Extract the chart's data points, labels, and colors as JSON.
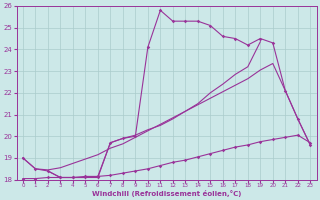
{
  "xlabel": "Windchill (Refroidissement éolien,°C)",
  "bg_color": "#cce8e8",
  "grid_color": "#aacccc",
  "line_color": "#993399",
  "xlim": [
    -0.5,
    23.5
  ],
  "ylim": [
    18,
    26
  ],
  "xticks": [
    0,
    1,
    2,
    3,
    4,
    5,
    6,
    7,
    8,
    9,
    10,
    11,
    12,
    13,
    14,
    15,
    16,
    17,
    18,
    19,
    20,
    21,
    22,
    23
  ],
  "yticks": [
    18,
    19,
    20,
    21,
    22,
    23,
    24,
    25,
    26
  ],
  "line1_x": [
    0,
    1,
    2,
    3,
    4,
    5,
    6,
    7,
    8,
    9,
    10,
    11,
    12,
    13,
    14,
    15,
    16,
    17,
    18,
    19,
    20,
    21,
    22,
    23
  ],
  "line1_y": [
    19.0,
    18.5,
    18.4,
    18.1,
    18.1,
    18.1,
    18.1,
    19.7,
    19.9,
    20.0,
    24.1,
    25.8,
    25.3,
    25.3,
    25.3,
    25.1,
    24.6,
    24.5,
    24.2,
    24.5,
    24.3,
    22.1,
    20.8,
    19.6
  ],
  "line2_x": [
    0,
    1,
    2,
    3,
    4,
    5,
    6,
    7,
    8,
    9,
    10,
    11,
    12,
    13,
    14,
    15,
    16,
    17,
    18,
    19,
    20,
    21,
    22,
    23
  ],
  "line2_y": [
    18.05,
    18.05,
    18.1,
    18.1,
    18.1,
    18.15,
    18.15,
    18.2,
    18.3,
    18.4,
    18.5,
    18.65,
    18.8,
    18.9,
    19.05,
    19.2,
    19.35,
    19.5,
    19.6,
    19.75,
    19.85,
    19.95,
    20.05,
    19.7
  ],
  "line3_x": [
    2,
    3,
    4,
    5,
    6,
    7,
    8,
    9,
    10,
    11,
    12,
    13,
    14,
    15,
    16,
    17,
    18,
    19
  ],
  "line3_y": [
    18.4,
    18.1,
    18.1,
    18.1,
    18.15,
    19.7,
    19.9,
    20.05,
    20.3,
    20.5,
    20.8,
    21.15,
    21.5,
    22.0,
    22.4,
    22.85,
    23.2,
    24.35
  ],
  "line4_x": [
    0,
    1,
    2,
    3,
    4,
    5,
    6,
    7,
    8,
    9,
    10,
    11,
    12,
    13,
    14,
    15,
    16,
    17,
    18,
    19,
    20,
    21,
    22,
    23
  ],
  "line4_y": [
    19.0,
    18.5,
    18.45,
    18.55,
    18.75,
    18.95,
    19.15,
    19.45,
    19.65,
    19.95,
    20.25,
    20.55,
    20.85,
    21.15,
    21.45,
    21.75,
    22.05,
    22.35,
    22.65,
    23.05,
    23.35,
    22.1,
    20.8,
    19.6
  ]
}
